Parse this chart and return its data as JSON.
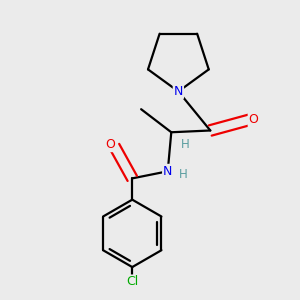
{
  "background_color": "#ebebeb",
  "atom_colors": {
    "C": "#000000",
    "N": "#0000ee",
    "O": "#ee0000",
    "Cl": "#00aa00",
    "H": "#5a9ea0"
  },
  "bond_color": "#000000",
  "bond_width": 1.6,
  "figsize": [
    3.0,
    3.0
  ],
  "dpi": 100
}
